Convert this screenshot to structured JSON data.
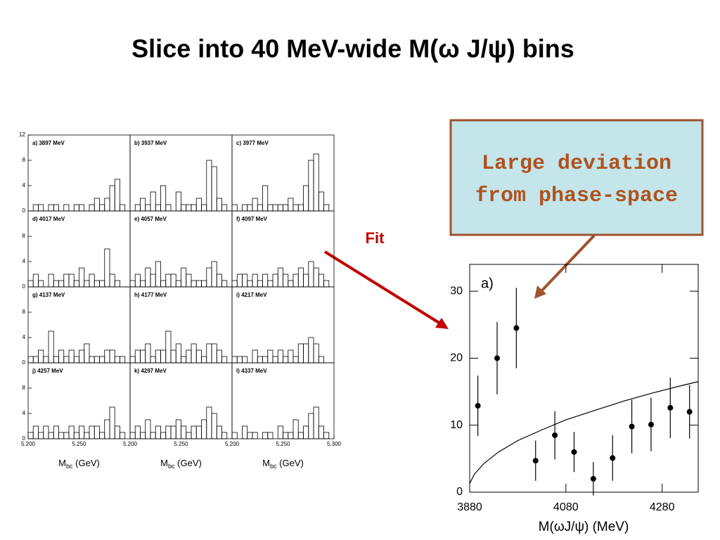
{
  "title": "Slice into 40 MeV-wide M(ω J/ψ) bins",
  "annotations": {
    "callout": [
      "Large deviation",
      "from phase-space"
    ],
    "fit_label": "Fit"
  },
  "chart_data": [
    {
      "type": "histogram",
      "title": "a) 3897 MeV",
      "bins": [
        5.2,
        5.205,
        5.21,
        5.215,
        5.22,
        5.225,
        5.23,
        5.235,
        5.24,
        5.245,
        5.25,
        5.255,
        5.26,
        5.265,
        5.27,
        5.275,
        5.28,
        5.285,
        5.29,
        5.295,
        5.3
      ],
      "values": [
        0,
        1,
        1,
        0,
        1,
        1,
        0,
        1,
        0,
        1,
        1,
        0,
        1,
        2,
        1,
        2,
        4,
        5,
        1,
        0
      ],
      "xlim": [
        5.2,
        5.3
      ],
      "ylim": [
        0,
        12
      ],
      "yticks": [
        0,
        4,
        8,
        12
      ]
    },
    {
      "type": "histogram",
      "title": "b) 3937 MeV",
      "bins": [
        5.2,
        5.205,
        5.21,
        5.215,
        5.22,
        5.225,
        5.23,
        5.235,
        5.24,
        5.245,
        5.25,
        5.255,
        5.26,
        5.265,
        5.27,
        5.275,
        5.28,
        5.285,
        5.29,
        5.295,
        5.3
      ],
      "values": [
        0,
        1,
        2,
        1,
        3,
        1,
        4,
        1,
        0,
        3,
        1,
        1,
        1,
        2,
        1,
        8,
        7,
        2,
        1,
        0
      ],
      "xlim": [
        5.2,
        5.3
      ],
      "ylim": [
        0,
        12
      ]
    },
    {
      "type": "histogram",
      "title": "c) 3977 MeV",
      "bins": [
        5.2,
        5.205,
        5.21,
        5.215,
        5.22,
        5.225,
        5.23,
        5.235,
        5.24,
        5.245,
        5.25,
        5.255,
        5.26,
        5.265,
        5.27,
        5.275,
        5.28,
        5.285,
        5.29,
        5.295,
        5.3
      ],
      "values": [
        1,
        0,
        1,
        1,
        2,
        1,
        4,
        1,
        1,
        1,
        1,
        2,
        1,
        1,
        4,
        8,
        9,
        3,
        1,
        0
      ],
      "xlim": [
        5.2,
        5.3
      ],
      "ylim": [
        0,
        12
      ]
    },
    {
      "type": "histogram",
      "title": "d) 4017 MeV",
      "bins": [
        5.2,
        5.205,
        5.21,
        5.215,
        5.22,
        5.225,
        5.23,
        5.235,
        5.24,
        5.245,
        5.25,
        5.255,
        5.26,
        5.265,
        5.27,
        5.275,
        5.28,
        5.285,
        5.29,
        5.295,
        5.3
      ],
      "values": [
        1,
        2,
        1,
        0,
        2,
        1,
        1,
        2,
        2,
        1,
        3,
        1,
        2,
        1,
        1,
        6,
        2,
        1,
        0,
        0
      ],
      "xlim": [
        5.2,
        5.3
      ],
      "ylim": [
        0,
        12
      ],
      "yticks": [
        0,
        4,
        8
      ]
    },
    {
      "type": "histogram",
      "title": "e) 4057 MeV",
      "bins": [
        5.2,
        5.205,
        5.21,
        5.215,
        5.22,
        5.225,
        5.23,
        5.235,
        5.24,
        5.245,
        5.25,
        5.255,
        5.26,
        5.265,
        5.27,
        5.275,
        5.28,
        5.285,
        5.29,
        5.295,
        5.3
      ],
      "values": [
        1,
        2,
        1,
        3,
        2,
        4,
        1,
        2,
        2,
        1,
        3,
        2,
        1,
        1,
        1,
        3,
        4,
        2,
        1,
        0
      ],
      "xlim": [
        5.2,
        5.3
      ],
      "ylim": [
        0,
        12
      ]
    },
    {
      "type": "histogram",
      "title": "f) 4097 MeV",
      "bins": [
        5.2,
        5.205,
        5.21,
        5.215,
        5.22,
        5.225,
        5.23,
        5.235,
        5.24,
        5.245,
        5.25,
        5.255,
        5.26,
        5.265,
        5.27,
        5.275,
        5.28,
        5.285,
        5.29,
        5.295,
        5.3
      ],
      "values": [
        1,
        2,
        2,
        1,
        2,
        1,
        2,
        1,
        2,
        3,
        2,
        1,
        2,
        3,
        2,
        4,
        3,
        2,
        1,
        0
      ],
      "xlim": [
        5.2,
        5.3
      ],
      "ylim": [
        0,
        12
      ]
    },
    {
      "type": "histogram",
      "title": "g) 4137 MeV",
      "bins": [
        5.2,
        5.205,
        5.21,
        5.215,
        5.22,
        5.225,
        5.23,
        5.235,
        5.24,
        5.245,
        5.25,
        5.255,
        5.26,
        5.265,
        5.27,
        5.275,
        5.28,
        5.285,
        5.29,
        5.295,
        5.3
      ],
      "values": [
        1,
        1,
        2,
        1,
        5,
        1,
        2,
        1,
        2,
        1,
        2,
        3,
        1,
        1,
        1,
        2,
        2,
        1,
        1,
        0
      ],
      "xlim": [
        5.2,
        5.3
      ],
      "ylim": [
        0,
        12
      ],
      "yticks": [
        0,
        4,
        8
      ]
    },
    {
      "type": "histogram",
      "title": "h) 4177 MeV",
      "bins": [
        5.2,
        5.205,
        5.21,
        5.215,
        5.22,
        5.225,
        5.23,
        5.235,
        5.24,
        5.245,
        5.25,
        5.255,
        5.26,
        5.265,
        5.27,
        5.275,
        5.28,
        5.285,
        5.29,
        5.295,
        5.3
      ],
      "values": [
        1,
        2,
        2,
        3,
        1,
        2,
        2,
        5,
        2,
        3,
        1,
        2,
        3,
        2,
        1,
        3,
        3,
        2,
        1,
        0
      ],
      "xlim": [
        5.2,
        5.3
      ],
      "ylim": [
        0,
        12
      ]
    },
    {
      "type": "histogram",
      "title": "i) 4217 MeV",
      "bins": [
        5.2,
        5.205,
        5.21,
        5.215,
        5.22,
        5.225,
        5.23,
        5.235,
        5.24,
        5.245,
        5.25,
        5.255,
        5.26,
        5.265,
        5.27,
        5.275,
        5.28,
        5.285,
        5.29,
        5.295,
        5.3
      ],
      "values": [
        1,
        1,
        1,
        0,
        2,
        1,
        1,
        2,
        1,
        2,
        1,
        2,
        1,
        3,
        3,
        4,
        3,
        1,
        0,
        0
      ],
      "xlim": [
        5.2,
        5.3
      ],
      "ylim": [
        0,
        12
      ]
    },
    {
      "type": "histogram",
      "title": "j) 4257 MeV",
      "bins": [
        5.2,
        5.205,
        5.21,
        5.215,
        5.22,
        5.225,
        5.23,
        5.235,
        5.24,
        5.245,
        5.25,
        5.255,
        5.26,
        5.265,
        5.27,
        5.275,
        5.28,
        5.285,
        5.29,
        5.295,
        5.3
      ],
      "values": [
        1,
        2,
        1,
        2,
        1,
        2,
        1,
        1,
        2,
        1,
        2,
        1,
        2,
        2,
        1,
        3,
        5,
        2,
        1,
        0
      ],
      "xlim": [
        5.2,
        5.3
      ],
      "ylim": [
        0,
        12
      ],
      "yticks": [
        0,
        4,
        8
      ],
      "xticks": [
        {
          "value": 5.2,
          "label": "5.200"
        },
        {
          "value": 5.25,
          "label": "5.250"
        }
      ],
      "xlabel": {
        "main": "M",
        "sub": "bc",
        "unit": " (GeV)"
      }
    },
    {
      "type": "histogram",
      "title": "k) 4297 MeV",
      "bins": [
        5.2,
        5.205,
        5.21,
        5.215,
        5.22,
        5.225,
        5.23,
        5.235,
        5.24,
        5.245,
        5.25,
        5.255,
        5.26,
        5.265,
        5.27,
        5.275,
        5.28,
        5.285,
        5.29,
        5.295,
        5.3
      ],
      "values": [
        1,
        2,
        1,
        3,
        1,
        2,
        1,
        2,
        2,
        3,
        2,
        1,
        2,
        2,
        3,
        5,
        4,
        2,
        1,
        0
      ],
      "xlim": [
        5.2,
        5.3
      ],
      "ylim": [
        0,
        12
      ],
      "xticks": [
        {
          "value": 5.2,
          "label": "5.200"
        },
        {
          "value": 5.25,
          "label": "5.250"
        }
      ],
      "xlabel": {
        "main": "M",
        "sub": "bc",
        "unit": " (GeV)"
      }
    },
    {
      "type": "histogram",
      "title": "l) 4337 MeV",
      "bins": [
        5.2,
        5.205,
        5.21,
        5.215,
        5.22,
        5.225,
        5.23,
        5.235,
        5.24,
        5.245,
        5.25,
        5.255,
        5.26,
        5.265,
        5.27,
        5.275,
        5.28,
        5.285,
        5.29,
        5.295,
        5.3
      ],
      "values": [
        1,
        0,
        2,
        1,
        1,
        0,
        1,
        1,
        0,
        2,
        1,
        1,
        3,
        1,
        2,
        4,
        5,
        2,
        1,
        0
      ],
      "xlim": [
        5.2,
        5.3
      ],
      "ylim": [
        0,
        12
      ],
      "xticks": [
        {
          "value": 5.2,
          "label": "5.200"
        },
        {
          "value": 5.25,
          "label": "5.250"
        },
        {
          "value": 5.3,
          "label": "5.300"
        }
      ],
      "xlabel": {
        "main": "M",
        "sub": "bc",
        "unit": " (GeV)"
      }
    },
    {
      "type": "scatter",
      "title": "a)",
      "xlabel": "M(ωJ/ψ) (MeV)",
      "x": [
        3897,
        3937,
        3977,
        4017,
        4057,
        4097,
        4137,
        4177,
        4217,
        4257,
        4297,
        4337
      ],
      "values": [
        12.9,
        20,
        24.5,
        4.7,
        8.5,
        6,
        2,
        5.1,
        9.8,
        10.1,
        12.6,
        12
      ],
      "errors": [
        4.5,
        5.4,
        6,
        3,
        3.6,
        3,
        2.5,
        3.4,
        4,
        4,
        4.5,
        4
      ],
      "fit": {
        "x": [
          3880,
          3890,
          3910,
          3940,
          3980,
          4030,
          4080,
          4140,
          4200,
          4260,
          4320,
          4355
        ],
        "values": [
          1.3,
          2.7,
          4.3,
          6.0,
          7.7,
          9.3,
          10.8,
          12.2,
          13.6,
          14.8,
          15.9,
          16.5
        ]
      },
      "xlim": [
        3880,
        4355
      ],
      "ylim": [
        0,
        34
      ],
      "xticks": [
        3880,
        4080,
        4280
      ],
      "yticks": [
        0,
        10,
        20,
        30
      ]
    }
  ]
}
